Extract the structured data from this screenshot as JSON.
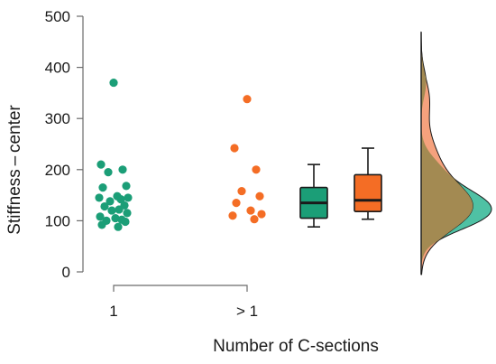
{
  "chart_data": {
    "type": "raincloud",
    "title": "",
    "xlabel": "Number of C-sections",
    "ylabel": "Stiffness – center",
    "ylim": [
      0,
      500
    ],
    "yticks": [
      0,
      100,
      200,
      300,
      400,
      500
    ],
    "grid": false,
    "categories": [
      "1",
      "> 1"
    ],
    "series": [
      {
        "category": "1",
        "color": "#1b9e77",
        "points": [
          370,
          210,
          200,
          195,
          168,
          165,
          148,
          145,
          145,
          142,
          138,
          130,
          128,
          122,
          120,
          115,
          108,
          105,
          102,
          100,
          98,
          92,
          88
        ],
        "box": {
          "min": 88,
          "q1": 105,
          "median": 135,
          "q3": 165,
          "max": 210
        }
      },
      {
        "category": "> 1",
        "color": "#f46d25",
        "points": [
          338,
          242,
          200,
          158,
          148,
          135,
          120,
          113,
          110,
          103
        ],
        "box": {
          "min": 103,
          "q1": 118,
          "median": 140,
          "q3": 190,
          "max": 242
        }
      }
    ],
    "density_colors": {
      "teal": "#4fc1a4",
      "orange": "#f5a17d",
      "overlap": "#a38a52"
    }
  }
}
